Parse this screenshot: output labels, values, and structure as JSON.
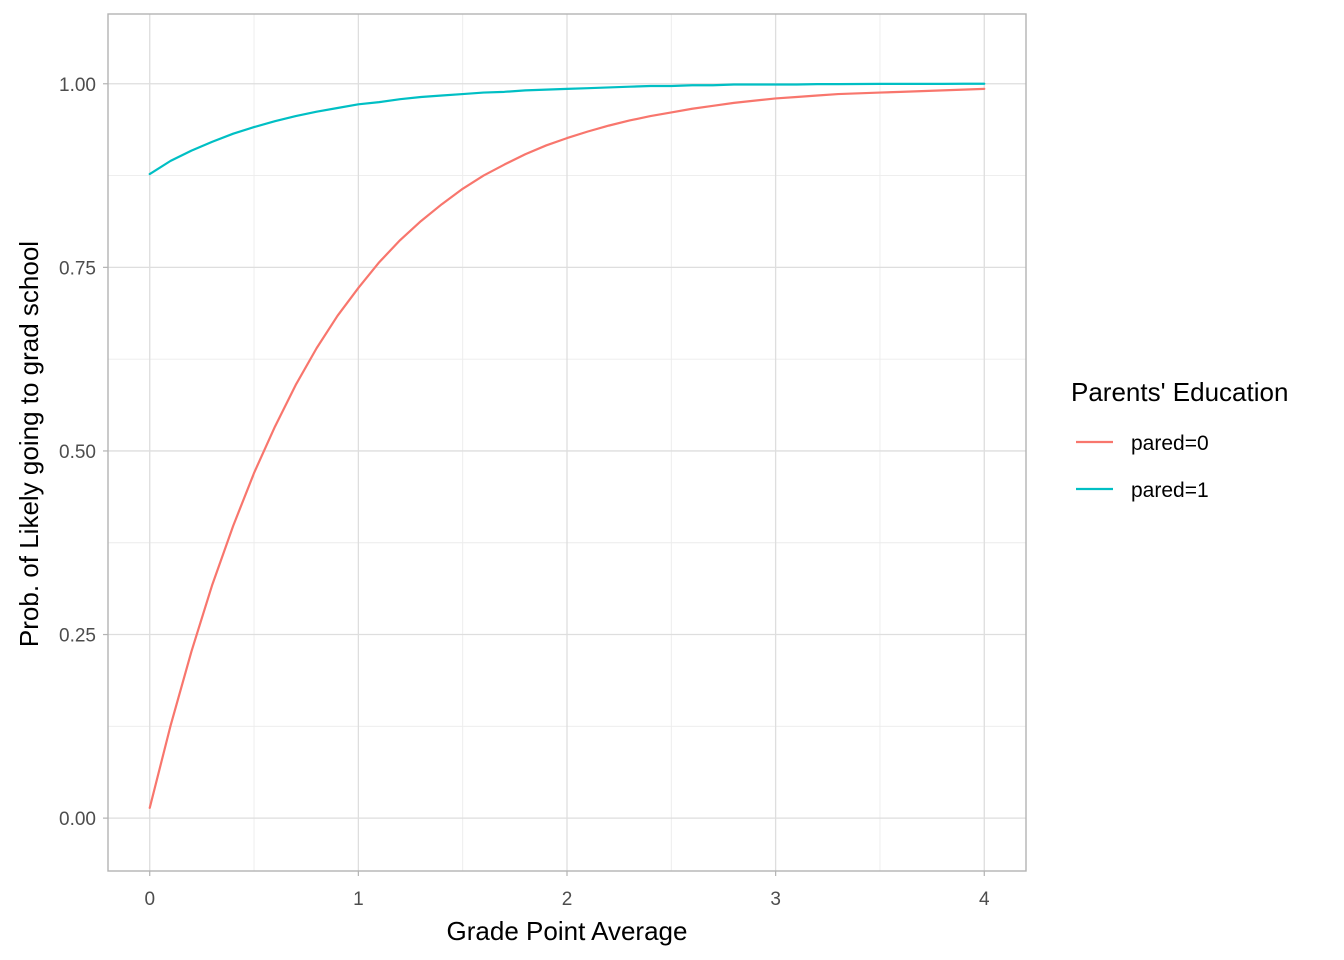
{
  "chart_data": {
    "type": "line",
    "title": "",
    "xlabel": "Grade Point Average",
    "ylabel": "Prob. of Likely going to grad school",
    "xlim": [
      -0.2,
      4.2
    ],
    "ylim": [
      -0.072,
      1.095
    ],
    "x_ticks": [
      0,
      1,
      2,
      3,
      4
    ],
    "x_tick_labels": [
      "0",
      "1",
      "2",
      "3",
      "4"
    ],
    "y_ticks": [
      0,
      0.25,
      0.5,
      0.75,
      1
    ],
    "y_tick_labels": [
      "0.00",
      "0.25",
      "0.50",
      "0.75",
      "1.00"
    ],
    "grid": true,
    "legend": {
      "title": "Parents' Education",
      "position": "right"
    },
    "x": [
      0.0,
      0.1,
      0.2,
      0.3,
      0.4,
      0.5,
      0.6,
      0.7,
      0.8,
      0.9,
      1.0,
      1.1,
      1.2,
      1.3,
      1.4,
      1.5,
      1.6,
      1.7,
      1.8,
      1.9,
      2.0,
      2.1,
      2.2,
      2.3,
      2.4,
      2.5,
      2.6,
      2.7,
      2.8,
      2.9,
      3.0,
      3.1,
      3.2,
      3.3,
      3.4,
      3.5,
      3.6,
      3.7,
      3.8,
      3.9,
      4.0
    ],
    "series": [
      {
        "name": "pared=0",
        "color": "#F8766D",
        "values": [
          0.014,
          0.126,
          0.227,
          0.318,
          0.398,
          0.47,
          0.533,
          0.59,
          0.64,
          0.684,
          0.722,
          0.757,
          0.787,
          0.813,
          0.836,
          0.857,
          0.875,
          0.89,
          0.904,
          0.916,
          0.926,
          0.935,
          0.943,
          0.95,
          0.956,
          0.961,
          0.966,
          0.97,
          0.974,
          0.977,
          0.98,
          0.982,
          0.984,
          0.986,
          0.987,
          0.988,
          0.989,
          0.99,
          0.991,
          0.992,
          0.993
        ]
      },
      {
        "name": "pared=1",
        "color": "#00BFC4",
        "values": [
          0.877,
          0.895,
          0.909,
          0.921,
          0.932,
          0.941,
          0.949,
          0.956,
          0.962,
          0.967,
          0.972,
          0.975,
          0.979,
          0.982,
          0.984,
          0.986,
          0.988,
          0.989,
          0.991,
          0.992,
          0.993,
          0.994,
          0.995,
          0.996,
          0.997,
          0.997,
          0.998,
          0.998,
          0.999,
          0.999,
          0.999,
          0.999,
          0.9995,
          0.9995,
          0.9997,
          0.9998,
          0.9998,
          0.9999,
          0.9999,
          1.0,
          1.0
        ]
      }
    ]
  }
}
